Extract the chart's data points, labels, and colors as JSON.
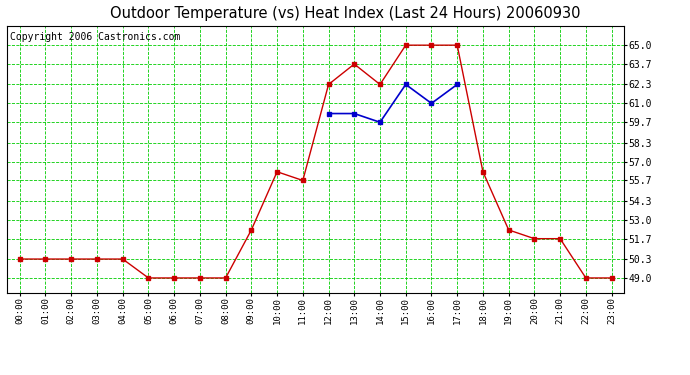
{
  "title": "Outdoor Temperature (vs) Heat Index (Last 24 Hours) 20060930",
  "copyright_text": "Copyright 2006 Castronics.com",
  "hours": [
    "00:00",
    "01:00",
    "02:00",
    "03:00",
    "04:00",
    "05:00",
    "06:00",
    "07:00",
    "08:00",
    "09:00",
    "10:00",
    "11:00",
    "12:00",
    "13:00",
    "14:00",
    "15:00",
    "16:00",
    "17:00",
    "18:00",
    "19:00",
    "20:00",
    "21:00",
    "22:00",
    "23:00"
  ],
  "red_temp": [
    50.3,
    50.3,
    50.3,
    50.3,
    50.3,
    49.0,
    49.0,
    49.0,
    49.0,
    52.3,
    56.3,
    55.7,
    62.3,
    63.7,
    62.3,
    65.0,
    65.0,
    65.0,
    56.3,
    52.3,
    51.7,
    51.7,
    49.0,
    49.0
  ],
  "blue_heat": [
    null,
    null,
    null,
    null,
    null,
    null,
    null,
    null,
    null,
    null,
    null,
    null,
    60.3,
    60.3,
    59.7,
    62.3,
    61.0,
    62.3,
    null,
    null,
    null,
    null,
    null,
    null
  ],
  "ylim_min": 48.0,
  "ylim_max": 66.3,
  "yticks": [
    49.0,
    50.3,
    51.7,
    53.0,
    54.3,
    55.7,
    57.0,
    58.3,
    59.7,
    61.0,
    62.3,
    63.7,
    65.0
  ],
  "bg_color": "#ffffff",
  "plot_bg_color": "#ffffff",
  "grid_color": "#00cc00",
  "red_color": "#cc0000",
  "blue_color": "#0000cc",
  "title_fontsize": 10.5,
  "copyright_fontsize": 7
}
